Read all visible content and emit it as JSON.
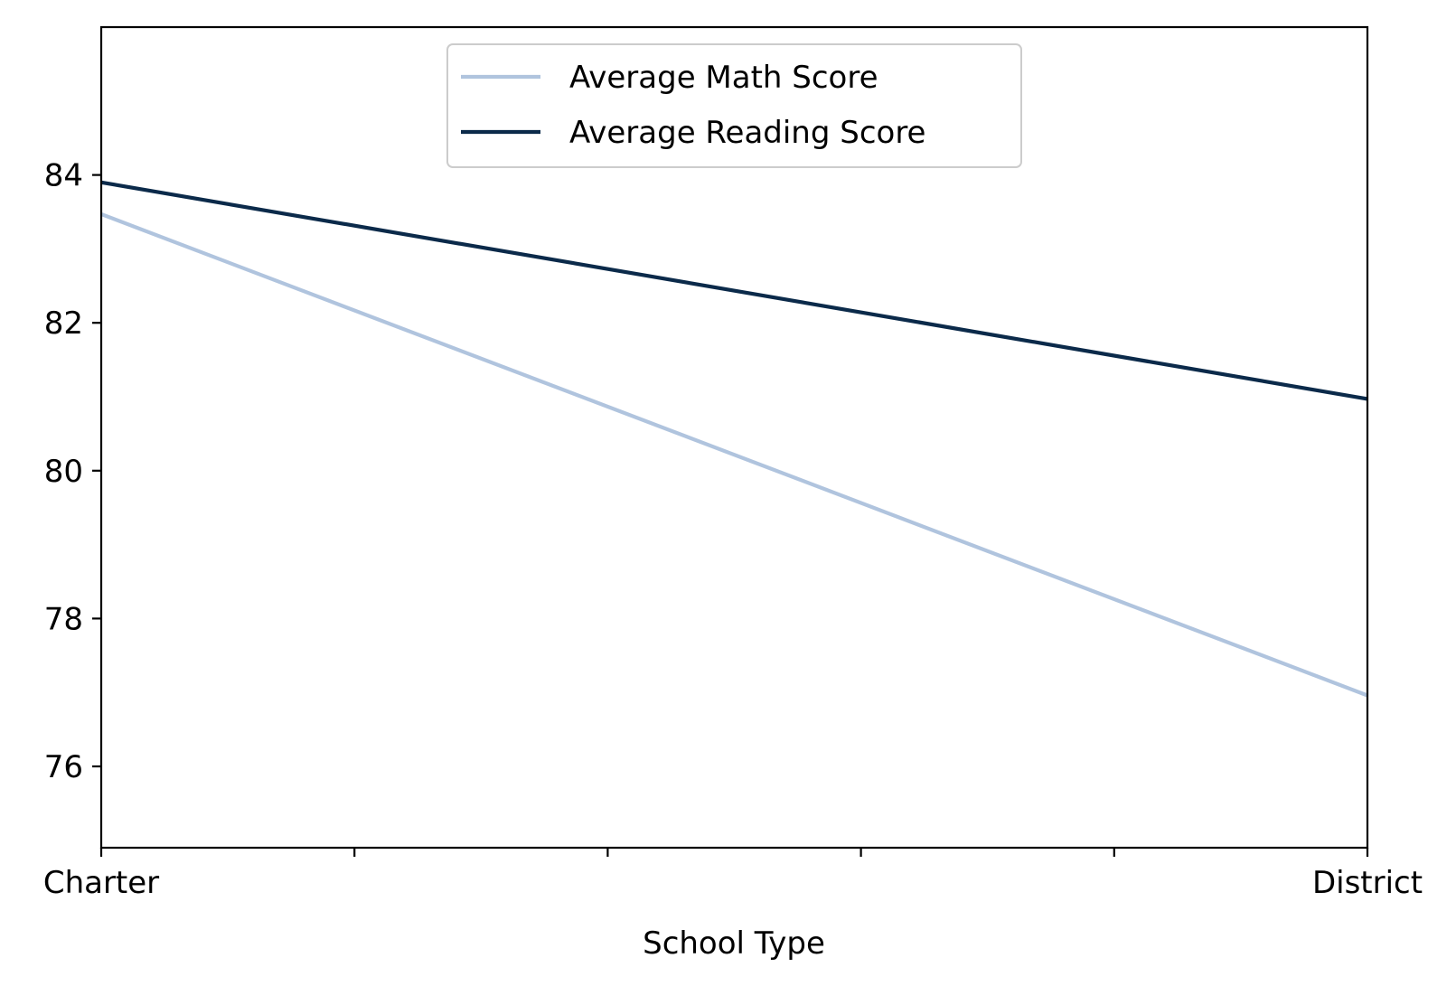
{
  "chart_data": {
    "type": "line",
    "title": "",
    "xlabel": "School Type",
    "ylabel": "",
    "categories": [
      "Charter",
      "District"
    ],
    "series": [
      {
        "name": "Average Math Score",
        "values": [
          83.47,
          76.96
        ],
        "color": "#b0c4de"
      },
      {
        "name": "Average Reading Score",
        "values": [
          83.9,
          80.97
        ],
        "color": "#0b2a4a"
      }
    ],
    "ylim": [
      74.9,
      86.0
    ],
    "yticks": [
      76,
      78,
      80,
      82,
      84
    ],
    "x_minor_ticks": 4,
    "grid": false,
    "legend": {
      "placement": "upper center"
    }
  }
}
